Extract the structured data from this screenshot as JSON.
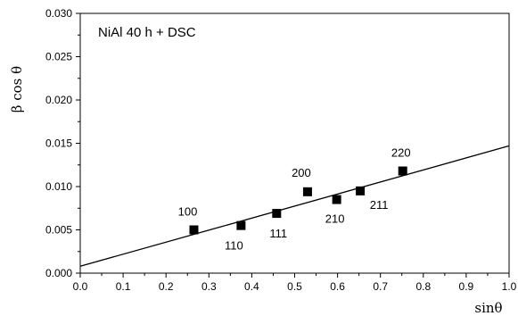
{
  "chart_data": {
    "type": "scatter",
    "title": "NiAl 40 h + DSC",
    "xlabel": "sinθ",
    "ylabel": "β cos θ",
    "xlim": [
      0.0,
      1.0
    ],
    "ylim": [
      0.0,
      0.03
    ],
    "x_ticks": [
      "0.0",
      "0.1",
      "0.2",
      "0.3",
      "0.4",
      "0.5",
      "0.6",
      "0.7",
      "0.8",
      "0.9",
      "1.0"
    ],
    "y_ticks": [
      "0.000",
      "0.005",
      "0.010",
      "0.015",
      "0.020",
      "0.025",
      "0.030"
    ],
    "grid": false,
    "points": [
      {
        "x": 0.265,
        "y": 0.005,
        "label": "100"
      },
      {
        "x": 0.375,
        "y": 0.0055,
        "label": "110"
      },
      {
        "x": 0.458,
        "y": 0.0069,
        "label": "111"
      },
      {
        "x": 0.53,
        "y": 0.0094,
        "label": "200"
      },
      {
        "x": 0.598,
        "y": 0.0085,
        "label": "210"
      },
      {
        "x": 0.653,
        "y": 0.0095,
        "label": "211"
      },
      {
        "x": 0.752,
        "y": 0.0118,
        "label": "220"
      }
    ],
    "fit_line": {
      "x": [
        0.0,
        1.0
      ],
      "y": [
        0.0008,
        0.0147
      ]
    },
    "colors": {
      "marker": "#000000",
      "line": "#000000"
    }
  }
}
